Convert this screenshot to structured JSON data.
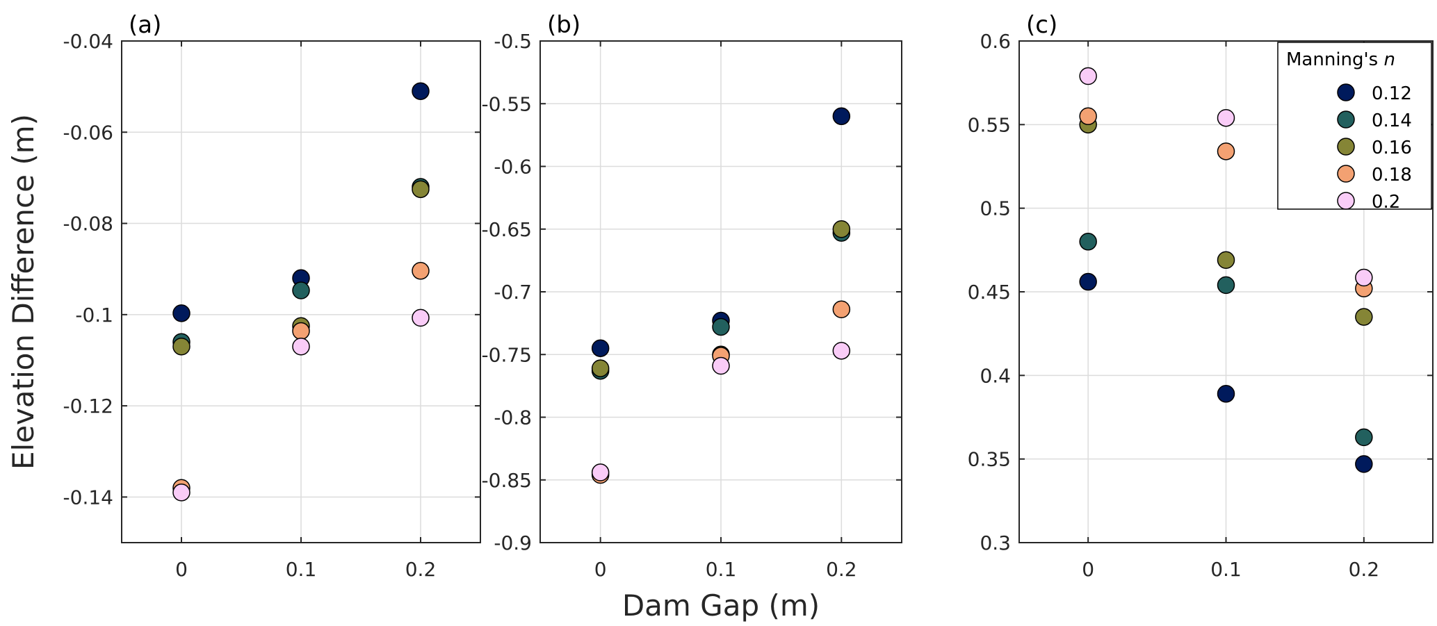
{
  "chart_data": {
    "type": "scatter",
    "xlabel": "Dam Gap (m)",
    "ylabel": "Elevation Difference (m)",
    "legend": {
      "title": "Manning's",
      "title_italic": "n",
      "placement": "top-right (panel c)"
    },
    "series_names": [
      "0.12",
      "0.14",
      "0.16",
      "0.18",
      "0.2"
    ],
    "series_colors": [
      "#001a5c",
      "#22605e",
      "#858536",
      "#f3a172",
      "#f9ccf7"
    ],
    "x": [
      0,
      0.1,
      0.2
    ],
    "xlim": [
      -0.05,
      0.25
    ],
    "xticks": [
      "0",
      "0.1",
      "0.2"
    ],
    "grid": true,
    "panels": [
      {
        "label": "(a)",
        "ylim": [
          -0.15,
          -0.04
        ],
        "yticks": [
          -0.14,
          -0.12,
          -0.1,
          -0.08,
          -0.06,
          -0.04
        ],
        "ytick_labels": [
          "-0.14",
          "-0.12",
          "-0.1",
          "-0.08",
          "-0.06",
          "-0.04"
        ],
        "series": [
          {
            "name": "0.12",
            "values": [
              -0.0997,
              -0.092,
              -0.051
            ]
          },
          {
            "name": "0.14",
            "values": [
              -0.106,
              -0.0947,
              -0.072
            ]
          },
          {
            "name": "0.16",
            "values": [
              -0.107,
              -0.1025,
              -0.0725
            ]
          },
          {
            "name": "0.18",
            "values": [
              -0.138,
              -0.1036,
              -0.0904
            ]
          },
          {
            "name": "0.2",
            "values": [
              -0.139,
              -0.107,
              -0.1007
            ]
          }
        ]
      },
      {
        "label": "(b)",
        "ylim": [
          -0.9,
          -0.5
        ],
        "yticks": [
          -0.9,
          -0.85,
          -0.8,
          -0.75,
          -0.7,
          -0.65,
          -0.6,
          -0.55,
          -0.5
        ],
        "ytick_labels": [
          "-0.9",
          "-0.85",
          "-0.8",
          "-0.75",
          "-0.7",
          "-0.65",
          "-0.6",
          "-0.55",
          "-0.5"
        ],
        "series": [
          {
            "name": "0.12",
            "values": [
              -0.745,
              -0.723,
              -0.56
            ]
          },
          {
            "name": "0.14",
            "values": [
              -0.763,
              -0.728,
              -0.653
            ]
          },
          {
            "name": "0.16",
            "values": [
              -0.761,
              -0.75,
              -0.65
            ]
          },
          {
            "name": "0.18",
            "values": [
              -0.846,
              -0.751,
              -0.714
            ]
          },
          {
            "name": "0.2",
            "values": [
              -0.844,
              -0.759,
              -0.747
            ]
          }
        ]
      },
      {
        "label": "(c)",
        "ylim": [
          0.3,
          0.6
        ],
        "yticks": [
          0.3,
          0.35,
          0.4,
          0.45,
          0.5,
          0.55,
          0.6
        ],
        "ytick_labels": [
          "0.3",
          "0.35",
          "0.4",
          "0.45",
          "0.5",
          "0.55",
          "0.6"
        ],
        "series": [
          {
            "name": "0.12",
            "values": [
              0.456,
              0.389,
              0.347
            ]
          },
          {
            "name": "0.14",
            "values": [
              0.48,
              0.454,
              0.363
            ]
          },
          {
            "name": "0.16",
            "values": [
              0.55,
              0.469,
              0.435
            ]
          },
          {
            "name": "0.18",
            "values": [
              0.555,
              0.534,
              0.452
            ]
          },
          {
            "name": "0.2",
            "values": [
              0.579,
              0.554,
              0.4585
            ]
          }
        ]
      }
    ]
  }
}
